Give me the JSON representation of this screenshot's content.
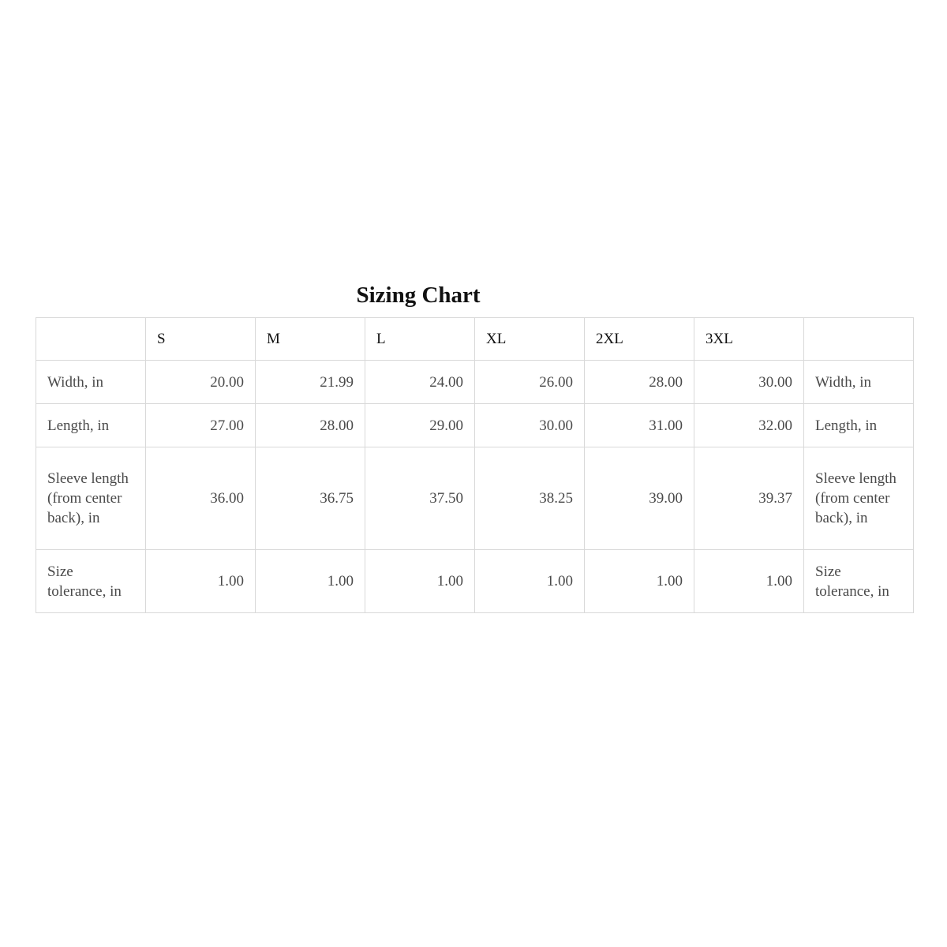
{
  "title": "Sizing Chart",
  "table": {
    "headers": [
      "",
      "S",
      "M",
      "L",
      "XL",
      "2XL",
      "3XL",
      ""
    ],
    "rows": [
      {
        "label": "Width, in",
        "values": [
          "20.00",
          "21.99",
          "24.00",
          "26.00",
          "28.00",
          "30.00"
        ]
      },
      {
        "label": "Length, in",
        "values": [
          "27.00",
          "28.00",
          "29.00",
          "30.00",
          "31.00",
          "32.00"
        ]
      },
      {
        "label": "Sleeve length (from center back), in",
        "values": [
          "36.00",
          "36.75",
          "37.50",
          "38.25",
          "39.00",
          "39.37"
        ]
      },
      {
        "label": "Size tolerance, in",
        "values": [
          "1.00",
          "1.00",
          "1.00",
          "1.00",
          "1.00",
          "1.00"
        ]
      }
    ]
  }
}
